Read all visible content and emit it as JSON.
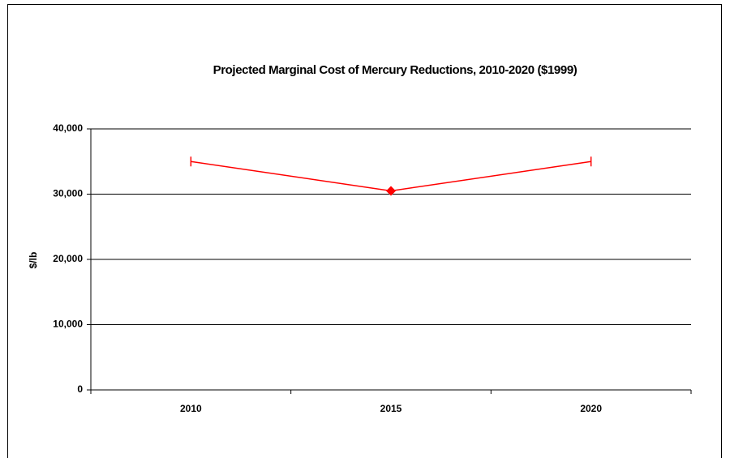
{
  "chart_data": {
    "type": "line",
    "title": "Projected Marginal Cost of Mercury Reductions, 2010-2020 ($1999)",
    "y_label": "$/lb",
    "categories": [
      "2010",
      "2015",
      "2020"
    ],
    "series": [
      {
        "color": "#ff0000",
        "markers": [
          "dash",
          "diamond",
          "dash"
        ],
        "values": [
          35000,
          30500,
          35000
        ]
      }
    ],
    "ylim": [
      0,
      40000
    ],
    "yticks": [
      0,
      {
        "value": 10000,
        "label": "10,000"
      },
      {
        "value": 20000,
        "label": "20,000"
      },
      {
        "value": 30000,
        "label": "30,000"
      },
      {
        "value": 40000,
        "label": "40,000"
      }
    ],
    "grid": true
  }
}
